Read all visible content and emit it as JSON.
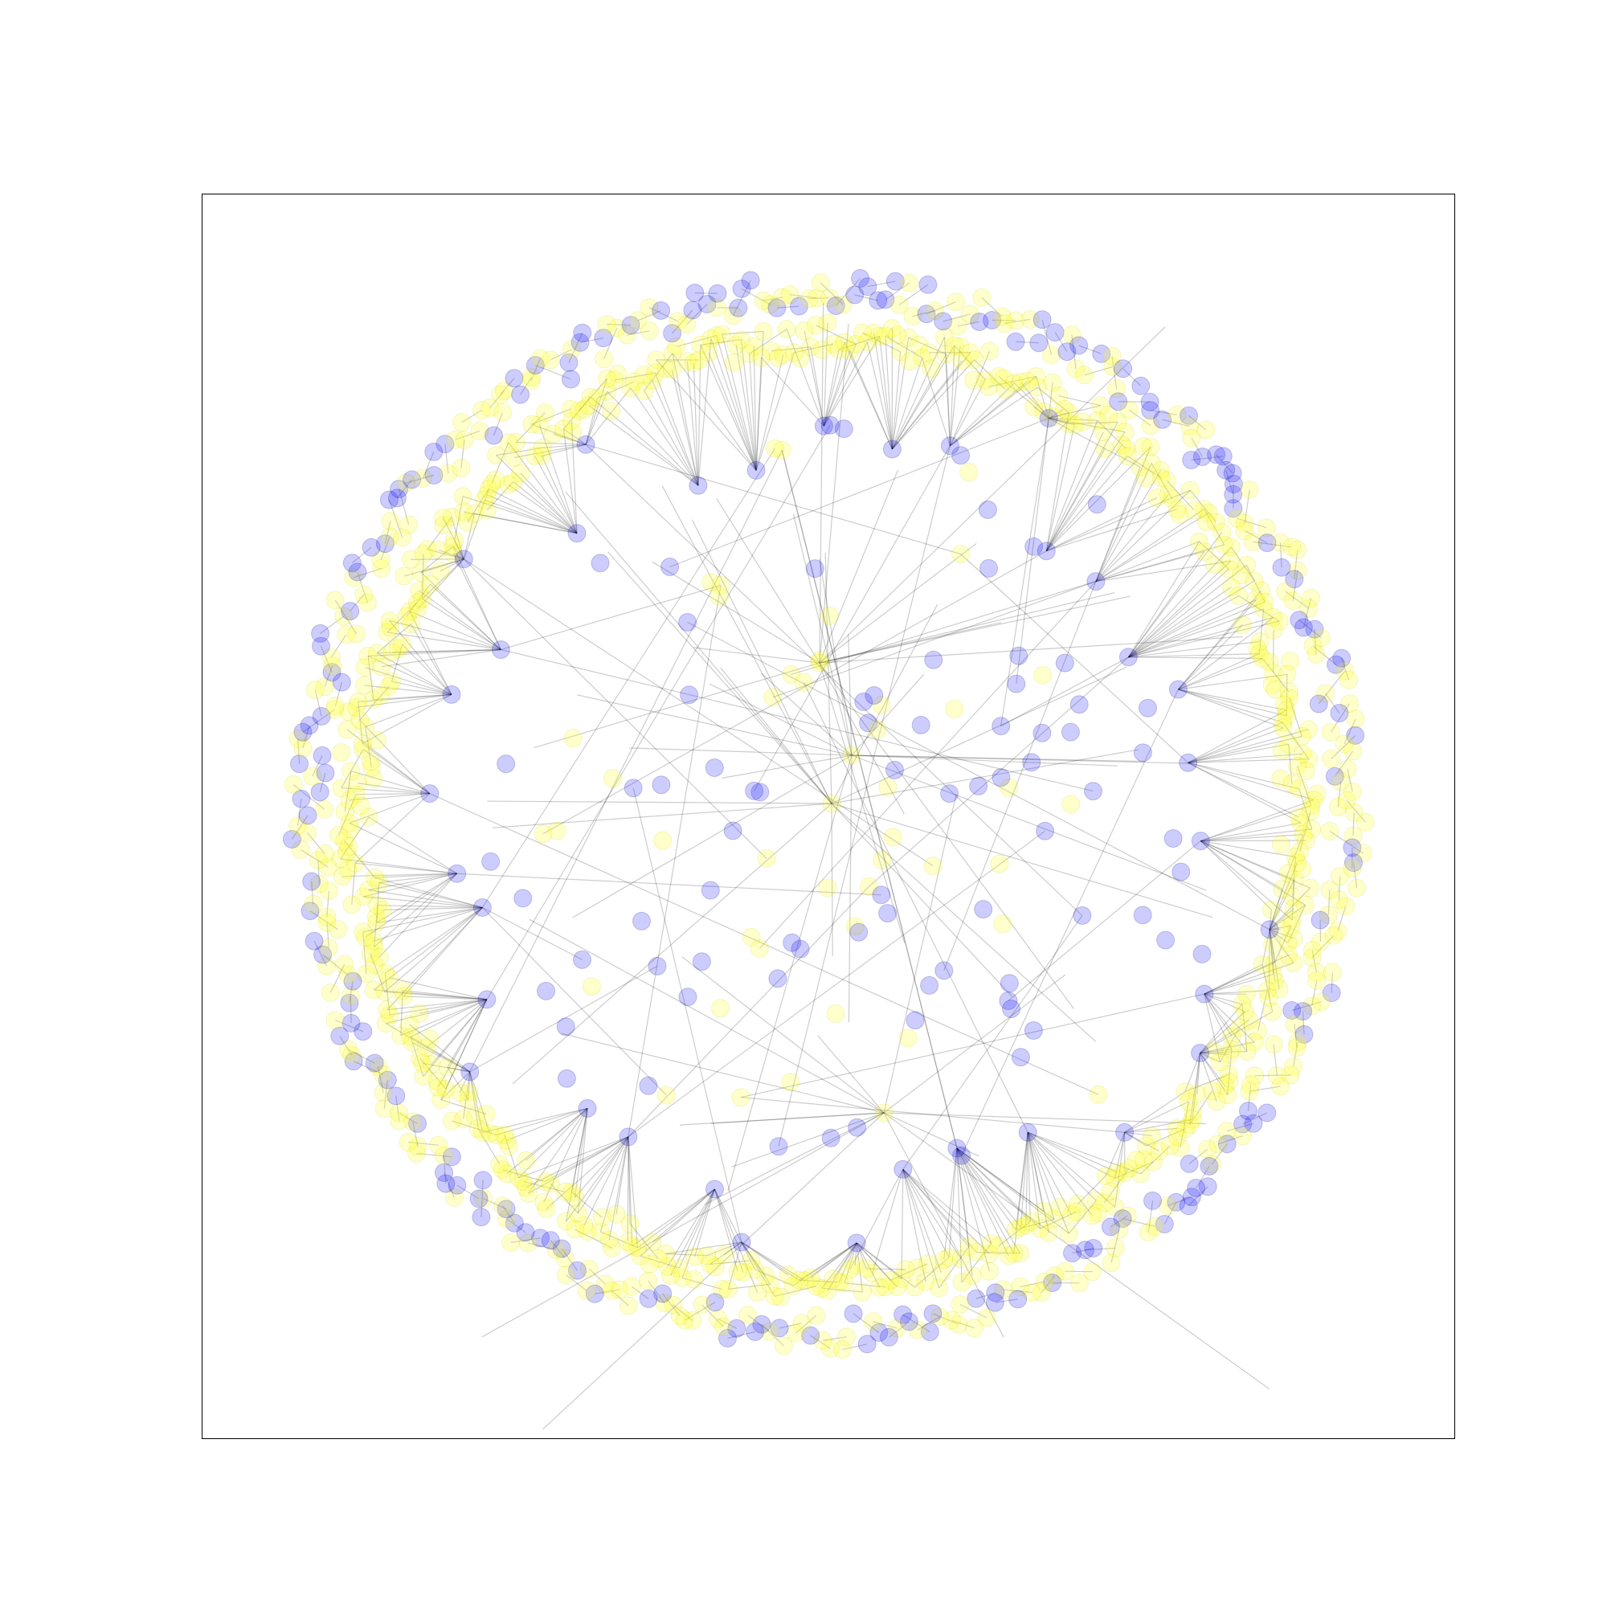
{
  "figure": {
    "background": "#ffffff",
    "frame_color": "#000000"
  },
  "chart_data": {
    "type": "network",
    "layout": "radial",
    "x_ticks": [],
    "y_ticks": [],
    "grid": false,
    "node_groups": [
      {
        "color": "#0000ff",
        "alpha": 0.2
      },
      {
        "color": "#ffff00",
        "alpha": 0.2
      }
    ],
    "edge_color": "#000000",
    "edge_alpha": 0.2
  }
}
